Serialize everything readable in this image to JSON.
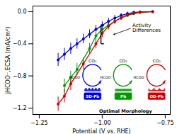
{
  "chart_data": {
    "type": "line",
    "xlabel": "Potential (V vs. RHE)",
    "ylabel": "jHCOO⁻,ECSA (mA/cm²)",
    "xlim": [
      -1.275,
      -0.73
    ],
    "ylim": [
      -1.28,
      0.07
    ],
    "xticks": [
      {
        "value": -1.25,
        "label": "−1.25"
      },
      {
        "value": -1.0,
        "label": "−1.00"
      },
      {
        "value": -0.75,
        "label": "−0.75"
      }
    ],
    "yticks": [
      {
        "value": 0.0,
        "label": "0.0"
      },
      {
        "value": -0.4,
        "label": "−0.4"
      },
      {
        "value": -0.8,
        "label": "−0.8"
      },
      {
        "value": -1.2,
        "label": "−1.2"
      }
    ],
    "marker": "circle",
    "line_style": "solid",
    "series": [
      {
        "color": "#0000dd",
        "x": [
          -1.175,
          -1.15,
          -1.125,
          -1.1,
          -1.075,
          -1.05,
          -1.025,
          -1.0,
          -0.975,
          -0.95,
          -0.925,
          -0.9,
          -0.875,
          -0.85,
          -0.8
        ],
        "values": [
          -0.6,
          -0.53,
          -0.46,
          -0.4,
          -0.34,
          -0.28,
          -0.22,
          -0.17,
          -0.12,
          -0.08,
          -0.048,
          -0.025,
          -0.01,
          -0.003,
          0.0
        ],
        "yerr": [
          0.08,
          0.075,
          0.07,
          0.065,
          0.06,
          0.055,
          0.05,
          0.045,
          0.04,
          0.035,
          0.028,
          0.022,
          0.015,
          0.01,
          0.005
        ]
      },
      {
        "color": "#009900",
        "x": [
          -1.15,
          -1.125,
          -1.1,
          -1.05,
          -1.025,
          -1.0,
          -0.975,
          -0.95,
          -0.925,
          -0.9,
          -0.875,
          -0.85,
          -0.8
        ],
        "values": [
          -0.92,
          -0.82,
          -0.72,
          -0.46,
          -0.3,
          -0.22,
          -0.17,
          -0.12,
          -0.08,
          -0.048,
          -0.025,
          -0.01,
          0.0
        ],
        "yerr": [
          0.085,
          0.08,
          0.075,
          0.065,
          0.055,
          0.048,
          0.04,
          0.033,
          0.027,
          0.021,
          0.015,
          0.01,
          0.005
        ]
      },
      {
        "color": "#cc0000",
        "x": [
          -1.175,
          -1.15,
          -1.125,
          -1.075,
          -1.025,
          -1.0,
          -0.975,
          -0.95,
          -0.925,
          -0.9,
          -0.875,
          -0.85,
          -0.8
        ],
        "values": [
          -1.15,
          -1.05,
          -0.9,
          -0.65,
          -0.4,
          -0.27,
          -0.18,
          -0.12,
          -0.075,
          -0.042,
          -0.02,
          -0.008,
          0.0
        ],
        "yerr": [
          0.09,
          0.085,
          0.08,
          0.072,
          0.062,
          0.055,
          0.046,
          0.038,
          0.03,
          0.023,
          0.016,
          0.01,
          0.005
        ]
      }
    ],
    "bracket": {
      "x": -1.005,
      "y1": -0.17,
      "y2": -0.4
    },
    "annotations": [
      {
        "text": "Activity\nDifferences",
        "x": -0.88,
        "y": -0.2,
        "arrow_x": -0.955,
        "arrow_y": -0.285
      }
    ],
    "inset": {
      "labels": [
        "SD-Pb",
        "Pb",
        "OD-Pb"
      ],
      "reactant_label": "CO₂",
      "product_label": "HCOO⁻",
      "caption": "Optimal Morphology"
    }
  }
}
